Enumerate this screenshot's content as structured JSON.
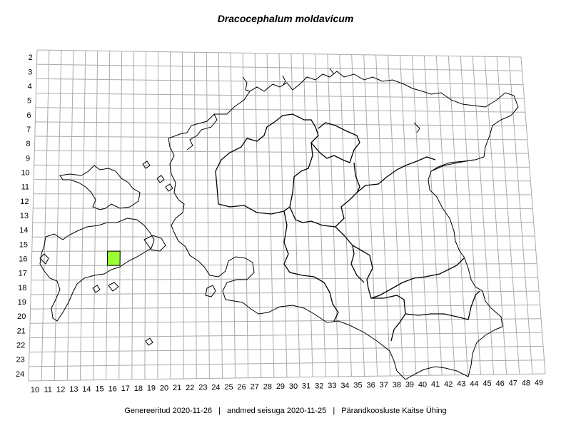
{
  "title": "Dracocephalum moldavicum",
  "footer": {
    "generated": "Genereeritud 2020-11-26",
    "data_state": "andmed seisuga 2020-11-25",
    "organization": "Pärandkoosluste Kaitse Ühing",
    "separator": "|"
  },
  "grid": {
    "columns": [
      10,
      11,
      12,
      13,
      14,
      15,
      16,
      17,
      18,
      19,
      20,
      21,
      22,
      23,
      24,
      25,
      26,
      27,
      28,
      29,
      30,
      31,
      32,
      33,
      34,
      35,
      36,
      37,
      38,
      39,
      40,
      41,
      42,
      43,
      44,
      45,
      46,
      47,
      48,
      49
    ],
    "rows": [
      2,
      3,
      4,
      5,
      6,
      7,
      8,
      9,
      10,
      11,
      12,
      13,
      14,
      15,
      16,
      17,
      18,
      19,
      20,
      21,
      22,
      23,
      24
    ]
  },
  "occurrences": [
    {
      "column": 16,
      "row": 16
    }
  ],
  "colors": {
    "grid_line": "#aaaaaa",
    "outline": "#000000",
    "occurrence_fill": "#99ff33"
  }
}
